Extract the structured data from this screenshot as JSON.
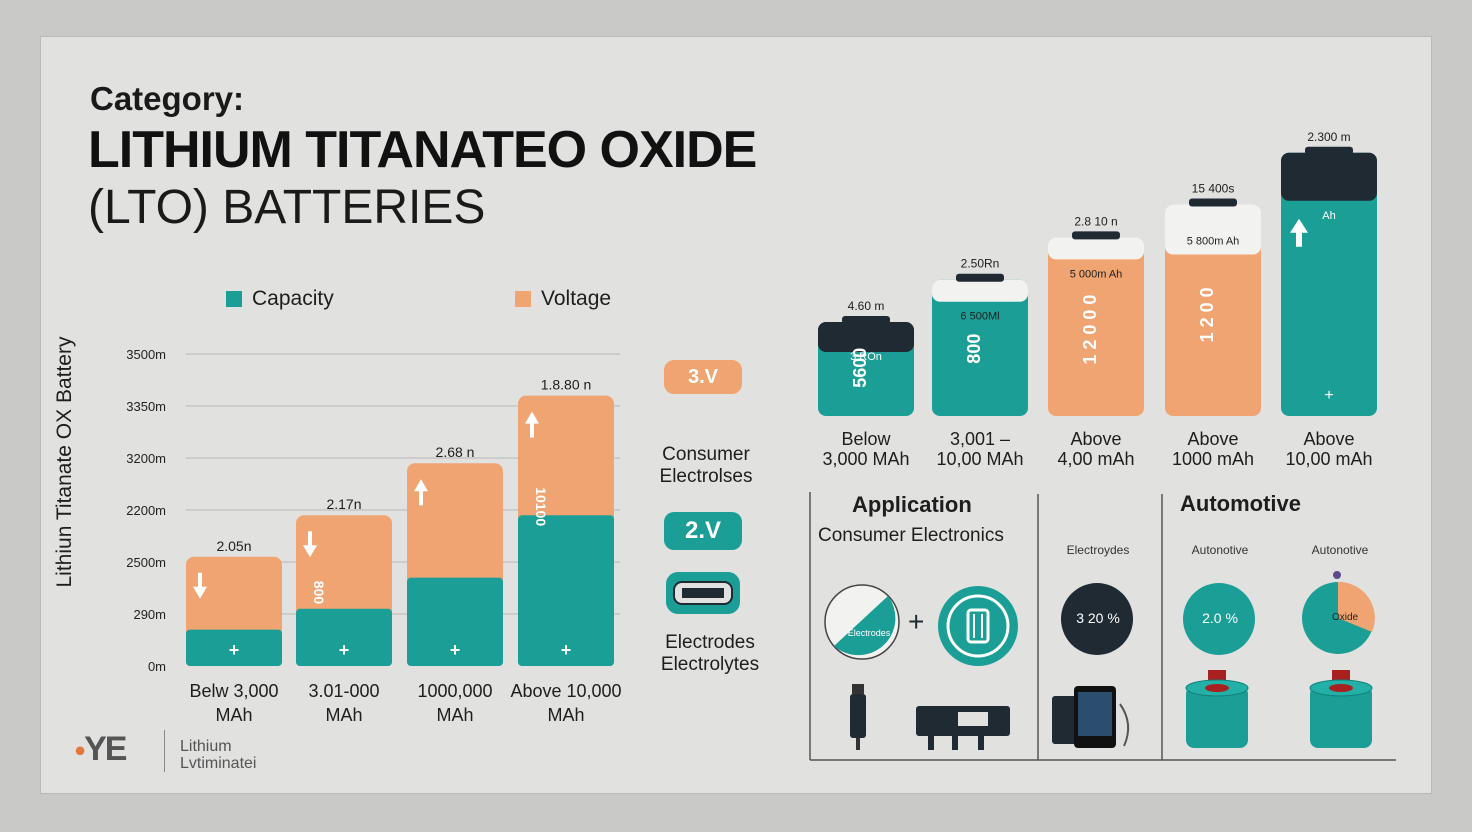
{
  "header": {
    "category": "Category:",
    "title_line1": "LITHIUM TITANATEO OXIDE",
    "title_line2": "(LTO) BATTERIES"
  },
  "legend": {
    "capacity": "Capacity",
    "voltage": "Voltage"
  },
  "colors": {
    "capacity": "#1a9e96",
    "voltage": "#f0a472",
    "dark": "#1f2a33"
  },
  "chart_data": [
    {
      "type": "bar",
      "ylabel": "Lithiun Titanate OX Battery",
      "y_ticks": [
        "3500m",
        "3350m",
        "3200m",
        "2200m",
        "2500m",
        "290m",
        "0m"
      ],
      "categories": [
        {
          "line1": "Belw 3,000",
          "line2": "MAh"
        },
        {
          "line1": "3.01-000",
          "line2": "MAh"
        },
        {
          "line1": "1000,000",
          "line2": "MAh"
        },
        {
          "line1": "Above 10,000",
          "line2": "MAh"
        }
      ],
      "top_labels": [
        "2.05n",
        "2.17n",
        "2.68 n",
        "1.8.80 n"
      ],
      "series": [
        {
          "name": "Capacity",
          "values": [
            0.7,
            1.1,
            1.7,
            2.9
          ]
        },
        {
          "name": "Voltage",
          "values": [
            1.4,
            1.8,
            2.2,
            2.3
          ]
        }
      ],
      "bar_texts": [
        "",
        "800",
        "",
        "10100"
      ],
      "ylim": [
        0,
        6
      ]
    },
    {
      "type": "bar",
      "categories": [
        {
          "line1": "Below",
          "line2": "3,000 MAh"
        },
        {
          "line1": "3,001 –",
          "line2": "10,00 MAh"
        },
        {
          "line1": "Above",
          "line2": "4,00 mAh"
        },
        {
          "line1": "Above",
          "line2": "1000 mAh"
        },
        {
          "line1": "Above",
          "line2": "10,00 mAh"
        }
      ],
      "top_labels": [
        "4.60 m",
        "2.50Rn",
        "2.8 10 n",
        "15 400s",
        "2.300 m"
      ],
      "cell_texts": [
        "5600",
        "800",
        "1 2 0 0 0",
        "1 2 0 0",
        ""
      ],
      "band_texts": [
        "3 ROn",
        "6 500Ml",
        "5 000m Ah",
        "5 800m Ah",
        "Ah"
      ],
      "heights": [
        1.0,
        1.45,
        1.9,
        2.25,
        2.8
      ]
    }
  ],
  "side": {
    "voltage_pill_1": "3.V",
    "consumer_line1": "Consumer",
    "consumer_line2": "Electrolses",
    "voltage_pill_2": "2.V",
    "electrodes_line1": "Electrodes",
    "electrodes_line2": "Electrolytes"
  },
  "applications": {
    "application_title": "Application",
    "application_subtitle": "Consumer Electronics",
    "automotive_title": "Automotive",
    "electrodes_label": "Electroydes",
    "automotive_label_1": "Autonotive",
    "automotive_label_2": "Autonotive",
    "disc_text_1": "3 20 %",
    "disc_text_2": "2.0 %",
    "disc_text_3": "Oxide",
    "electrode_disc_text": "Electrodes"
  },
  "footer": {
    "logo": "YE",
    "line1": "Lithium",
    "line2": "Lvtiminatei"
  }
}
